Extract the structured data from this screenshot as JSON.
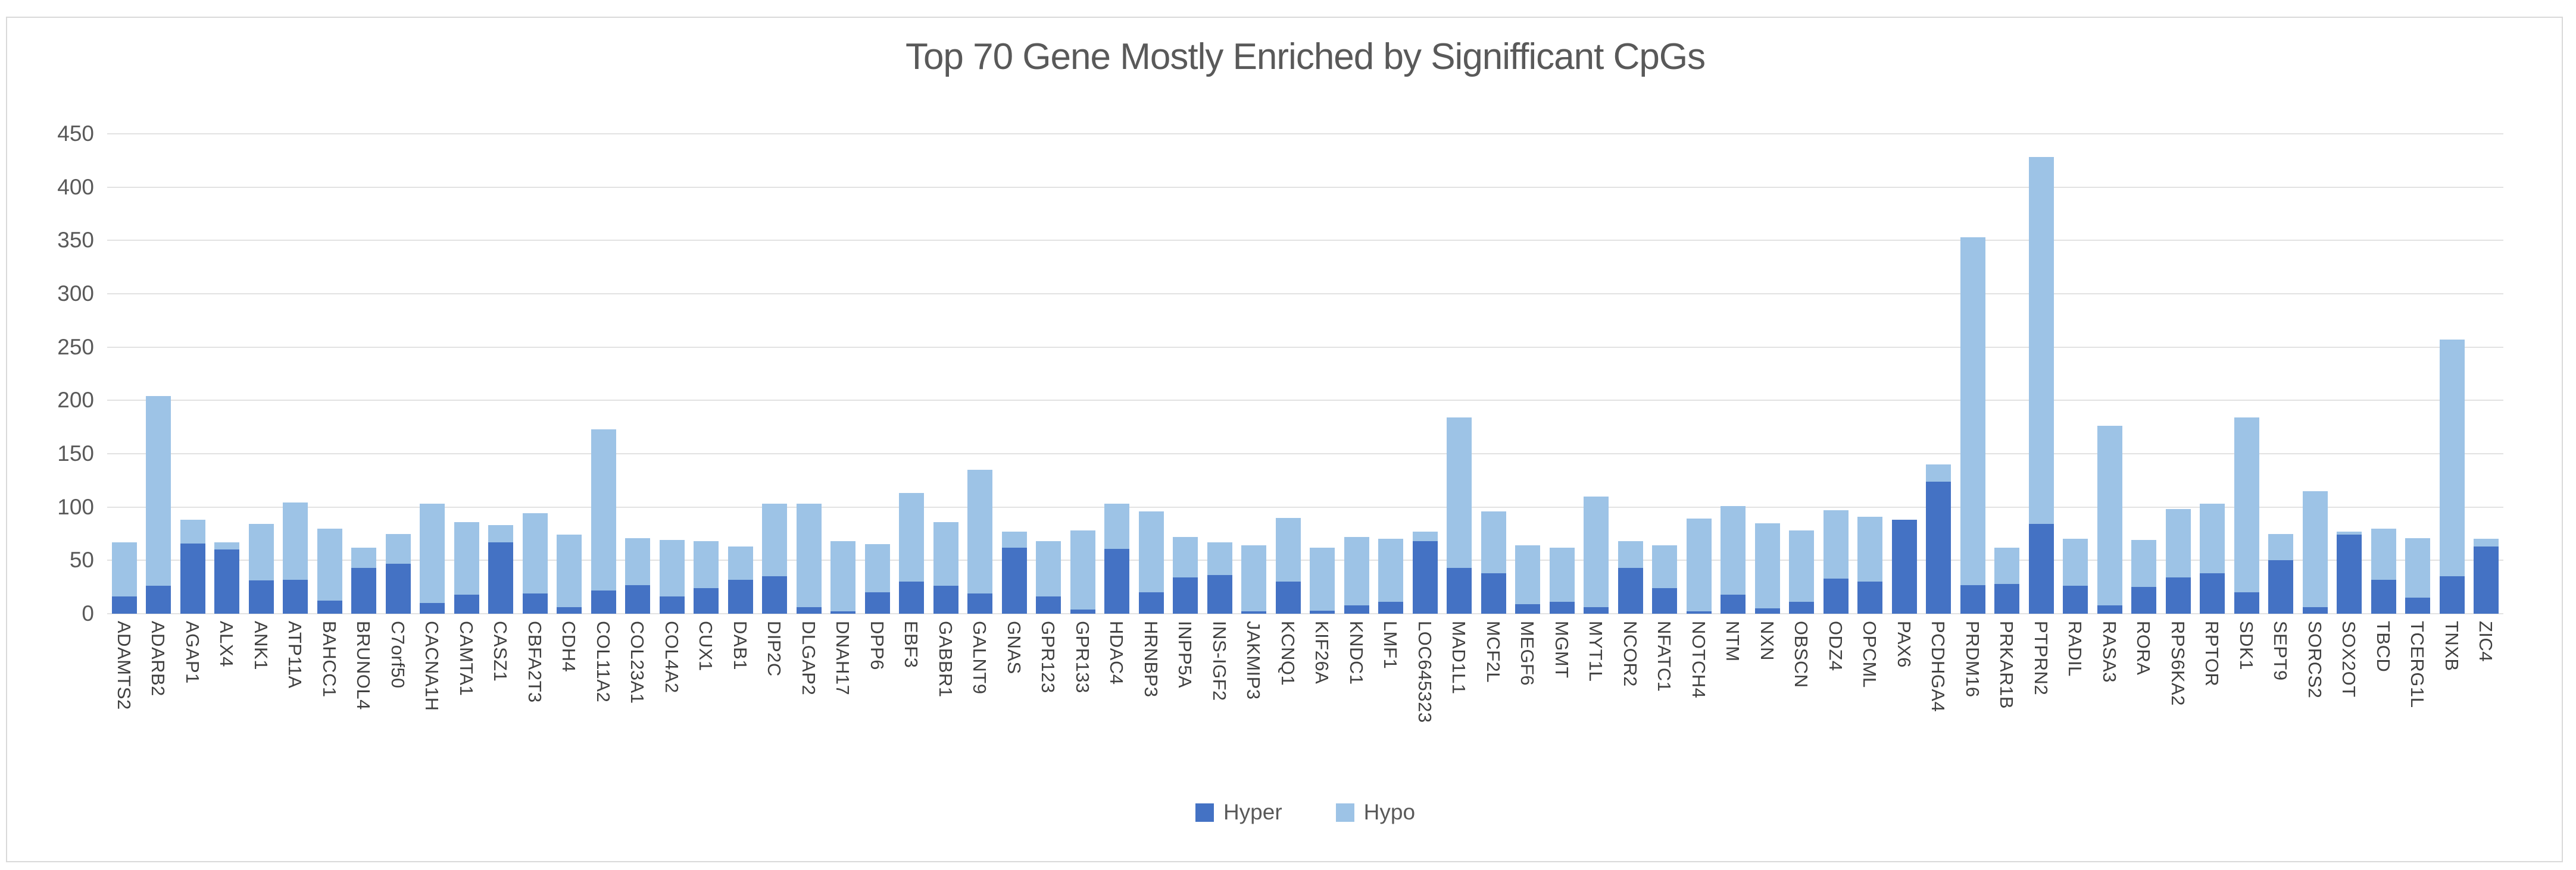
{
  "chart_data": {
    "type": "bar",
    "stacked": true,
    "title": "Top 70 Gene Mostly Enriched by Signifficant CpGs",
    "xlabel": "",
    "ylabel": "",
    "ylim": [
      0,
      450
    ],
    "yticks": [
      0,
      50,
      100,
      150,
      200,
      250,
      300,
      350,
      400,
      450
    ],
    "grid": "horizontal",
    "legend_position": "bottom",
    "categories": [
      "ADAMTS2",
      "ADARB2",
      "AGAP1",
      "ALX4",
      "ANK1",
      "ATP11A",
      "BAHCC1",
      "BRUNOL4",
      "C7orf50",
      "CACNA1H",
      "CAMTA1",
      "CASZ1",
      "CBFA2T3",
      "CDH4",
      "COL11A2",
      "COL23A1",
      "COL4A2",
      "CUX1",
      "DAB1",
      "DIP2C",
      "DLGAP2",
      "DNAH17",
      "DPP6",
      "EBF3",
      "GABBR1",
      "GALNT9",
      "GNAS",
      "GPR123",
      "GPR133",
      "HDAC4",
      "HRNBP3",
      "INPP5A",
      "INS-IGF2",
      "JAKMIP3",
      "KCNQ1",
      "KIF26A",
      "KNDC1",
      "LMF1",
      "LOC645323",
      "MAD1L1",
      "MCF2L",
      "MEGF6",
      "MGMT",
      "MYT1L",
      "NCOR2",
      "NFATC1",
      "NOTCH4",
      "NTM",
      "NXN",
      "OBSCN",
      "ODZ4",
      "OPCML",
      "PAX6",
      "PCDHGA4",
      "PRDM16",
      "PRKAR1B",
      "PTPRN2",
      "RADIL",
      "RASA3",
      "RORA",
      "RPS6KA2",
      "RPTOR",
      "SDK1",
      "SEPT9",
      "SORCS2",
      "SOX2OT",
      "TBCD",
      "TCERG1L",
      "TNXB",
      "ZIC4"
    ],
    "series": [
      {
        "name": "Hyper",
        "color": "#4472c4",
        "values": [
          16,
          26,
          66,
          60,
          31,
          32,
          12,
          43,
          47,
          10,
          18,
          67,
          19,
          6,
          22,
          27,
          16,
          24,
          32,
          35,
          6,
          2,
          20,
          30,
          26,
          19,
          62,
          16,
          4,
          61,
          20,
          34,
          36,
          2,
          30,
          3,
          8,
          11,
          68,
          43,
          38,
          9,
          11,
          6,
          43,
          24,
          2,
          18,
          5,
          11,
          33,
          30,
          88,
          124,
          27,
          28,
          84,
          26,
          8,
          25,
          34,
          38,
          20,
          50,
          6,
          74,
          32,
          15,
          35,
          63
        ]
      },
      {
        "name": "Hypo",
        "color": "#9dc3e6",
        "values": [
          51,
          178,
          22,
          7,
          53,
          72,
          68,
          19,
          28,
          93,
          68,
          16,
          75,
          68,
          151,
          44,
          53,
          44,
          31,
          68,
          97,
          66,
          45,
          83,
          60,
          116,
          15,
          52,
          74,
          42,
          76,
          38,
          31,
          62,
          60,
          59,
          64,
          59,
          9,
          141,
          58,
          55,
          51,
          104,
          25,
          40,
          87,
          83,
          80,
          67,
          64,
          61,
          0,
          16,
          326,
          34,
          344,
          44,
          168,
          44,
          64,
          65,
          164,
          25,
          109,
          3,
          48,
          56,
          222,
          7
        ]
      }
    ]
  },
  "colors": {
    "title_text": "#595959",
    "axis_text": "#595959",
    "category_text": "#404040",
    "gridline": "#e2e2e2",
    "card_border": "#d9d9d9",
    "background": "#ffffff"
  }
}
